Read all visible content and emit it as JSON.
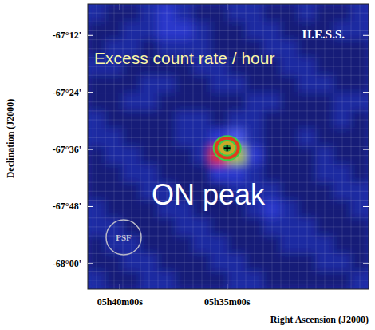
{
  "chart_data": {
    "type": "heatmap",
    "title": "Excess count rate / hour",
    "x_label": "Right Ascension (J2000)",
    "y_label": "Declination (J2000)",
    "annotations": [
      "H.E.S.S.",
      "ON peak",
      "PSF"
    ],
    "xlim": [
      341.5,
      328.4
    ],
    "ylim": [
      -68.09,
      -67.09
    ],
    "xticks": [
      {
        "value": 340,
        "label": "05h40m00s"
      },
      {
        "value": 335,
        "label": "05h35m00s"
      }
    ],
    "yticks": [
      {
        "value": -67.2,
        "label": "-67°12'"
      },
      {
        "value": -67.4,
        "label": "-67°24'"
      },
      {
        "value": -67.6,
        "label": "-67°36'"
      },
      {
        "value": -67.8,
        "label": "-67°48'"
      },
      {
        "value": -68.0,
        "label": "-68°00'"
      }
    ],
    "grid": true,
    "source": {
      "x": 335.0,
      "y": -67.595
    },
    "cells": [
      [
        3,
        2,
        2,
        3,
        4,
        3,
        2,
        2,
        3,
        3,
        2,
        2,
        3,
        2,
        2,
        3
      ],
      [
        2,
        2,
        3,
        3,
        4,
        4,
        3,
        2,
        2,
        3,
        3,
        2,
        2,
        2,
        3,
        3
      ],
      [
        2,
        3,
        3,
        2,
        3,
        3,
        3,
        2,
        2,
        2,
        3,
        3,
        2,
        2,
        2,
        2
      ],
      [
        3,
        3,
        2,
        2,
        2,
        2,
        3,
        3,
        2,
        2,
        2,
        3,
        3,
        2,
        2,
        2
      ],
      [
        2,
        2,
        2,
        3,
        3,
        2,
        2,
        3,
        3,
        2,
        2,
        2,
        3,
        3,
        2,
        2
      ],
      [
        2,
        2,
        3,
        3,
        2,
        2,
        2,
        2,
        2,
        3,
        3,
        2,
        2,
        2,
        3,
        3
      ],
      [
        3,
        2,
        2,
        2,
        2,
        3,
        3,
        2,
        3,
        3,
        2,
        2,
        2,
        2,
        3,
        2
      ],
      [
        3,
        3,
        2,
        2,
        2,
        3,
        3,
        4,
        5,
        3,
        2,
        2,
        3,
        2,
        2,
        2
      ],
      [
        2,
        3,
        3,
        2,
        2,
        2,
        3,
        9,
        7,
        4,
        2,
        2,
        2,
        3,
        2,
        2
      ],
      [
        2,
        2,
        3,
        3,
        2,
        2,
        2,
        4,
        4,
        3,
        2,
        2,
        2,
        3,
        3,
        2
      ],
      [
        2,
        2,
        2,
        3,
        3,
        2,
        2,
        2,
        3,
        3,
        3,
        2,
        2,
        2,
        3,
        3
      ],
      [
        3,
        2,
        2,
        2,
        3,
        3,
        2,
        2,
        2,
        3,
        4,
        3,
        2,
        2,
        2,
        3
      ],
      [
        3,
        3,
        2,
        2,
        2,
        3,
        3,
        2,
        2,
        2,
        3,
        3,
        3,
        2,
        2,
        2
      ],
      [
        2,
        3,
        3,
        2,
        2,
        2,
        3,
        3,
        2,
        2,
        2,
        3,
        3,
        3,
        2,
        2
      ],
      [
        2,
        2,
        3,
        3,
        2,
        2,
        2,
        3,
        3,
        2,
        2,
        2,
        2,
        3,
        3,
        2
      ],
      [
        3,
        2,
        2,
        3,
        3,
        2,
        2,
        2,
        3,
        3,
        2,
        2,
        2,
        2,
        2,
        3
      ]
    ]
  }
}
